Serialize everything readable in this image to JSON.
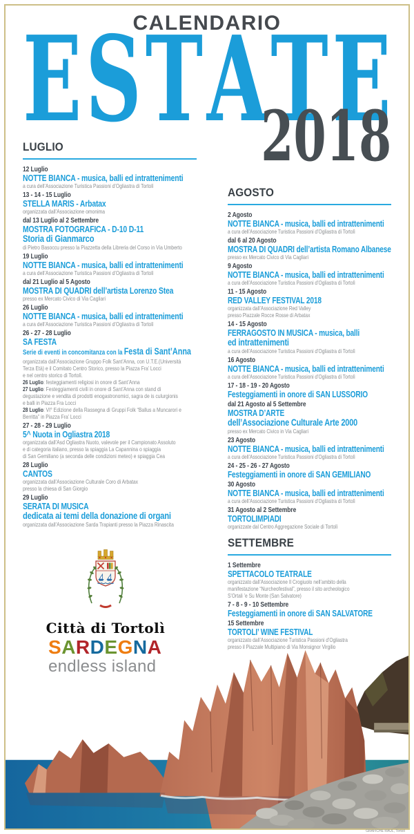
{
  "poster": {
    "kicker": "CALENDARIO",
    "headline_letters": [
      "E",
      "S",
      "T",
      "A",
      "T",
      "E"
    ],
    "year": "2018",
    "colors": {
      "accent_blue": "#1b9dd9",
      "dark_gray": "#474e53",
      "border_tan": "#cdbf87",
      "desc_gray": "#8a8d8f",
      "underline_blue": "#29a9e0"
    }
  },
  "columns": {
    "left": {
      "sections": [
        {
          "month": "LUGLIO",
          "events": [
            {
              "date": "12 Luglio",
              "title_lines": [
                "NOTTE BIANCA - musica, balli ed intrattenimenti"
              ],
              "desc": "a cura dell’Associazione Turistica Passioni d’Ogliastra di Tortolì"
            },
            {
              "date": "13 - 14 - 15 Luglio",
              "title_lines": [
                "STELLA MARIS - Arbatax"
              ],
              "desc": "organizzata dall’Associazione omonima"
            },
            {
              "date": "dal 13 Luglio al 2 Settembre",
              "title_lines": [
                "MOSTRA FOTOGRAFICA - D-10 D-11",
                "Storia di Gianmarco"
              ],
              "desc": "di Pietro Basoccu presso la Piazzetta della Libreria del Corso in Via Umberto"
            },
            {
              "date": "19 Luglio",
              "title_lines": [
                "NOTTE BIANCA - musica, balli ed intrattenimenti"
              ],
              "desc": "a cura dell’Associazione Turistica Passioni d’Ogliastra di Tortolì"
            },
            {
              "date": "dal 21 Luglio al 5 Agosto",
              "title_lines": [
                "MOSTRA DI QUADRI dell’artista Lorenzo Stea"
              ],
              "desc": "presso ex Mercato Civico di Via Cagliari"
            },
            {
              "date": "26 Luglio",
              "title_lines": [
                "NOTTE BIANCA - musica, balli ed intrattenimenti"
              ],
              "desc": "a cura dell’Associazione Turistica Passioni d’Ogliastra di Tortolì"
            },
            {
              "date": "26 - 27 - 28 Luglio",
              "title_lines": [
                "SA FESTA"
              ],
              "subtitle": {
                "small": "Serie di eventi in concomitanza con la ",
                "big": "Festa di Sant’Anna"
              },
              "desc": "organizzata dall’Associazione Gruppo Folk Sant’Anna, con U.T.E.(Università\nTerza Età) e il Comitato Centro Storico, presso la Piazza Fra’ Locci\ne nel centro storico di Tortolì.",
              "details": [
                {
                  "label": "26 Luglio",
                  "text": ": festeggiamenti religiosi in onore di Sant’Anna"
                },
                {
                  "label": "27 Luglio",
                  "text": ": Festeggiamenti civili in onore di Sant’Anna con stand di\ndegustazione e vendita di prodotti enogastronomici, sagra de is culurgionis\ne balli in Piazza Fra Locci"
                },
                {
                  "label": "28 Luglio",
                  "text": ": VI° Edizione della Rassegna di Gruppi Folk “Ballus a Muncarori e\nBerritta” in Piazza Fra’ Locci"
                }
              ]
            },
            {
              "date": "27 - 28 - 29 Luglio",
              "title_lines": [
                "5^ Nuota in Ogliastra 2018"
              ],
              "desc": "organizzata dall’Asd Ogliastra Nuoto, valevole per il Campionato Assoluto\ne di categoria italiano, presso la spiaggia La Capannina o spiaggia\ndi San Gemiliano (a seconda delle condizioni meteo) e spiaggia Cea"
            },
            {
              "date": "28 Luglio",
              "title_lines": [
                "CANTOS"
              ],
              "desc": "organizzata dall’Associazione Culturale Coro di Arbatax\npresso la chiesa di San Giorgio"
            },
            {
              "date": "29 Luglio",
              "title_lines": [
                "SERATA DI MUSICA",
                "dedicata ai temi della donazione di organi"
              ],
              "desc": "organizzata dall’Associazione Sarda Trapianti presso la Piazza Rinascita"
            }
          ]
        }
      ]
    },
    "right": {
      "sections": [
        {
          "month": "AGOSTO",
          "events": [
            {
              "date": "2 Agosto",
              "title_lines": [
                "NOTTE BIANCA - musica, balli ed intrattenimenti"
              ],
              "desc": "a cura dell’Associazione Turistica Passioni d’Ogliastra di Tortolì"
            },
            {
              "date": "dal 6 al 20 Agosto",
              "title_lines": [
                "MOSTRA DI QUADRI dell’artista Romano Albanese"
              ],
              "desc": "presso ex Mercato Civico di Via Cagliari"
            },
            {
              "date": "9 Agosto",
              "title_lines": [
                "NOTTE BIANCA - musica, balli ed intrattenimenti"
              ],
              "desc": "a cura dell’Associazione Turistica Passioni d’Ogliastra di Tortolì"
            },
            {
              "date": "11 - 15 Agosto",
              "title_lines": [
                "RED VALLEY FESTIVAL 2018"
              ],
              "desc": "organizzata dall’Associazione Red Valley\npresso Piazzale Rocce Rosse di Arbatax"
            },
            {
              "date": "14 - 15 Agosto",
              "title_lines": [
                "FERRAGOSTO IN MUSICA - musica, balli",
                "ed intrattenimenti"
              ],
              "desc": "a cura dell’Associazione Turistica Passioni d’Ogliastra di Tortolì"
            },
            {
              "date": "16 Agosto",
              "title_lines": [
                "NOTTE BIANCA - musica, balli ed intrattenimenti"
              ],
              "desc": "a cura dell’Associazione Turistica Passioni d’Ogliastra di Tortolì"
            },
            {
              "date": "17 - 18 - 19 - 20 Agosto",
              "title_lines": [
                "Festeggiamenti in onore di SAN LUSSORIO"
              ]
            },
            {
              "date": "dal 21 Agosto al 5 Settembre",
              "title_lines": [
                "MOSTRA D’ARTE",
                "dell’Associazione Culturale Arte 2000"
              ],
              "desc": "presso ex Mercato Civico in Via Cagliari"
            },
            {
              "date": "23 Agosto",
              "title_lines": [
                "NOTTE BIANCA - musica, balli ed intrattenimenti"
              ],
              "desc": "a cura dell’Associazione Turistica Passioni d’Ogliastra di Tortolì"
            },
            {
              "date": "24 - 25 - 26 - 27 Agosto",
              "title_lines": [
                "Festeggiamenti in onore di SAN GEMILIANO"
              ]
            },
            {
              "date": "30 Agosto",
              "title_lines": [
                "NOTTE BIANCA - musica, balli ed intrattenimenti"
              ],
              "desc": "a cura dell’Associazione Turistica Passioni d’Ogliastra di Tortolì"
            },
            {
              "date": "31 Agosto al 2 Settembre",
              "title_lines": [
                "TORTOLIMPIADI"
              ],
              "desc": "organizzate dal Centro Aggregazione Sociale di Tortolì"
            }
          ]
        },
        {
          "month": "SETTEMBRE",
          "events": [
            {
              "date": "1 Settembre",
              "title_lines": [
                "SPETTACOLO TEATRALE"
              ],
              "desc": "organizzato dall’Associazione Il Crogiuolo nell’ambito della\nmanifestazione “Nurcheofestival”, presso il sito archeologico\nS’Ortali ’e Su Monte (San Salvatore)"
            },
            {
              "date": "7 - 8 - 9 - 10 Settembre",
              "title_lines": [
                "Festeggiamenti in onore di SAN SALVATORE"
              ]
            },
            {
              "date": "15 Settembre",
              "title_lines": [
                "TORTOLI’ WINE FESTIVAL"
              ],
              "desc": "organizzato dall’Associazione Turistica Passioni d’Ogliastra\npresso il Piazzale Multipiano di Via Monsignor Virgilio"
            }
          ]
        }
      ]
    }
  },
  "footer": {
    "city_logo_label": "Città di Tortolì",
    "sardegna_letters": [
      {
        "ch": "S",
        "color": "#ee7d11"
      },
      {
        "ch": "A",
        "color": "#6b9430"
      },
      {
        "ch": "R",
        "color": "#b2252a"
      },
      {
        "ch": "D",
        "color": "#156a9e"
      },
      {
        "ch": "E",
        "color": "#6b9430"
      },
      {
        "ch": "G",
        "color": "#ee7d11"
      },
      {
        "ch": "N",
        "color": "#156a9e"
      },
      {
        "ch": "A",
        "color": "#b2252a"
      }
    ],
    "sardegna_tagline": "endless island",
    "photo_credit": "GRAFICHE RAUL, Tortolì"
  }
}
